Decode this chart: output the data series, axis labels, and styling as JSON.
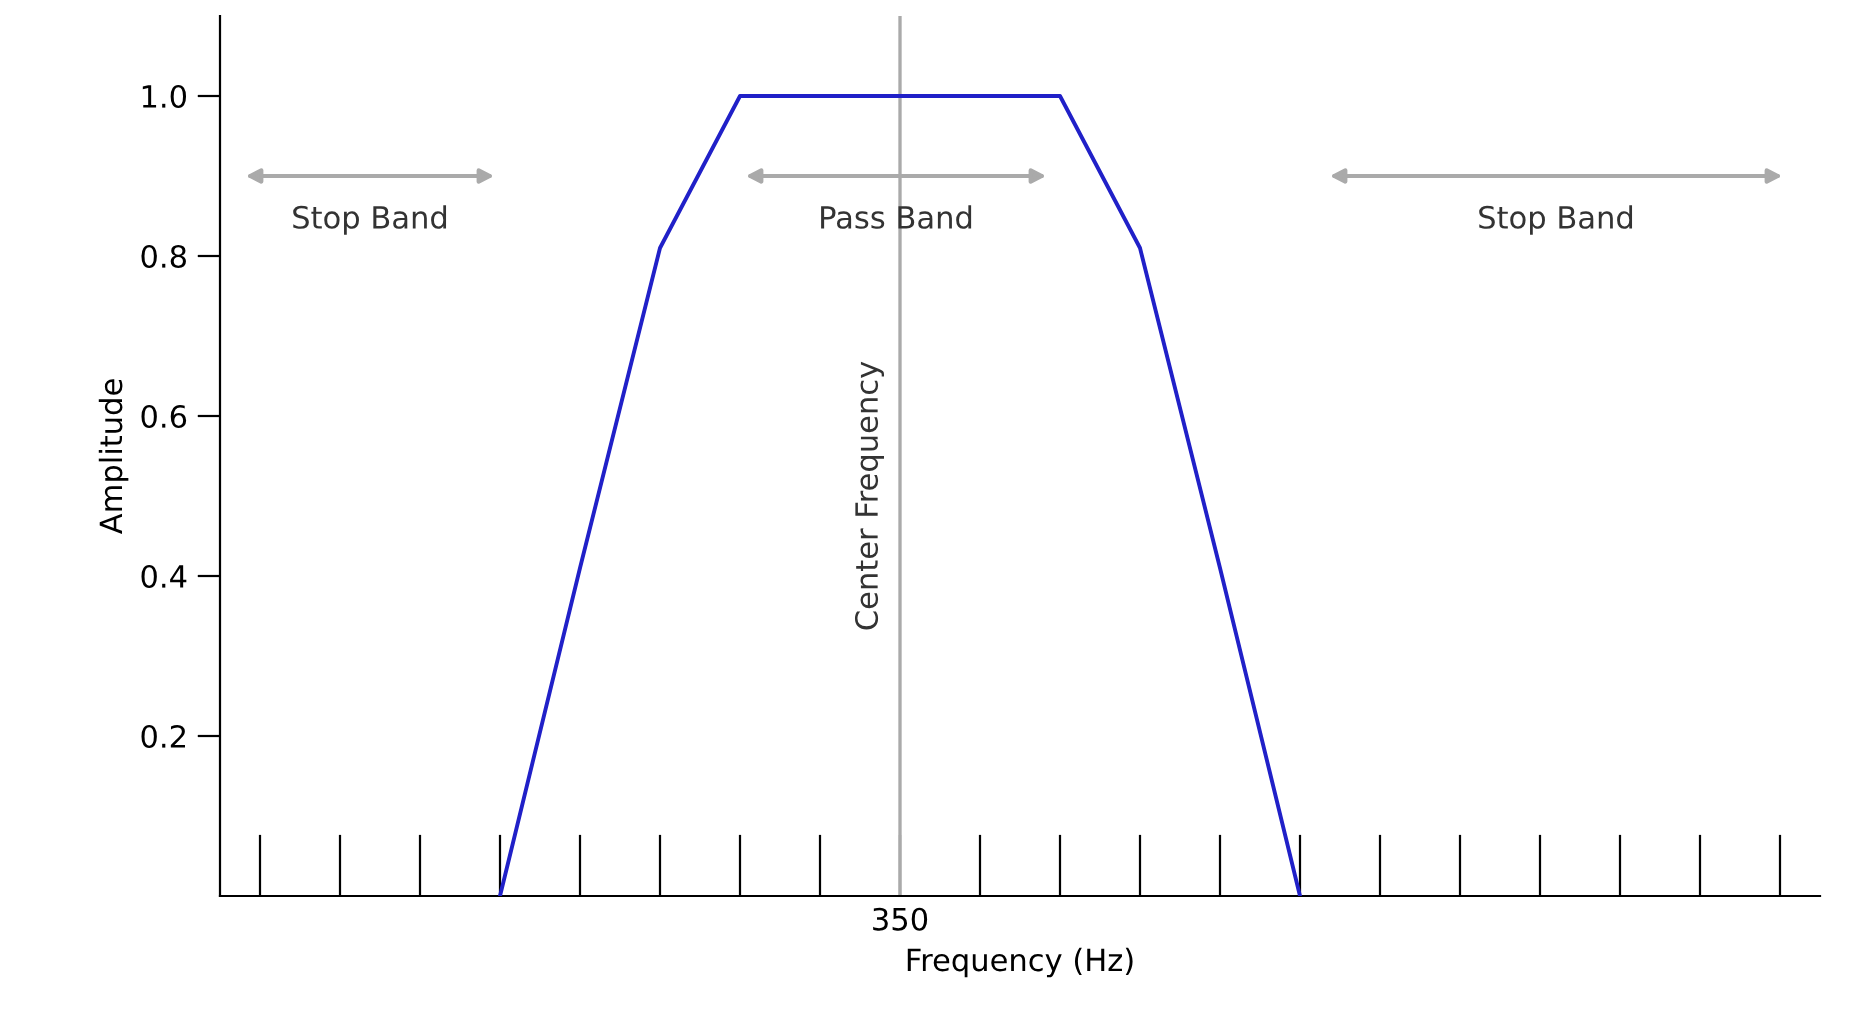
{
  "chart_data": {
    "type": "line",
    "xlabel": "Frequency (Hz)",
    "ylabel": "Amplitude",
    "categories": [
      null,
      null,
      null,
      null,
      null,
      null,
      null,
      null,
      "350",
      null,
      null,
      null,
      null,
      null,
      null,
      null,
      null,
      null,
      null,
      null
    ],
    "series": [
      {
        "color": "#2020c8",
        "values": [
          null,
          null,
          null,
          0,
          0.41,
          0.81,
          1.0,
          1.0,
          1.0,
          1.0,
          1.0,
          0.81,
          0.41,
          0,
          null,
          null,
          null,
          null,
          null,
          null
        ]
      }
    ],
    "ylim": [
      0,
      1.1
    ],
    "yticks": [
      0.2,
      0.4,
      0.6,
      0.8,
      {
        "value": 1.0,
        "label": "1.0"
      }
    ],
    "grid": false,
    "marker": "none",
    "line_style": "solid",
    "ref_lines": [
      {
        "axis": "x",
        "value": "350",
        "label": "Center Frequency",
        "color": "#aaaaaa"
      }
    ],
    "annotations": [
      "Stop Band",
      "Pass Band",
      "Stop Band"
    ]
  }
}
